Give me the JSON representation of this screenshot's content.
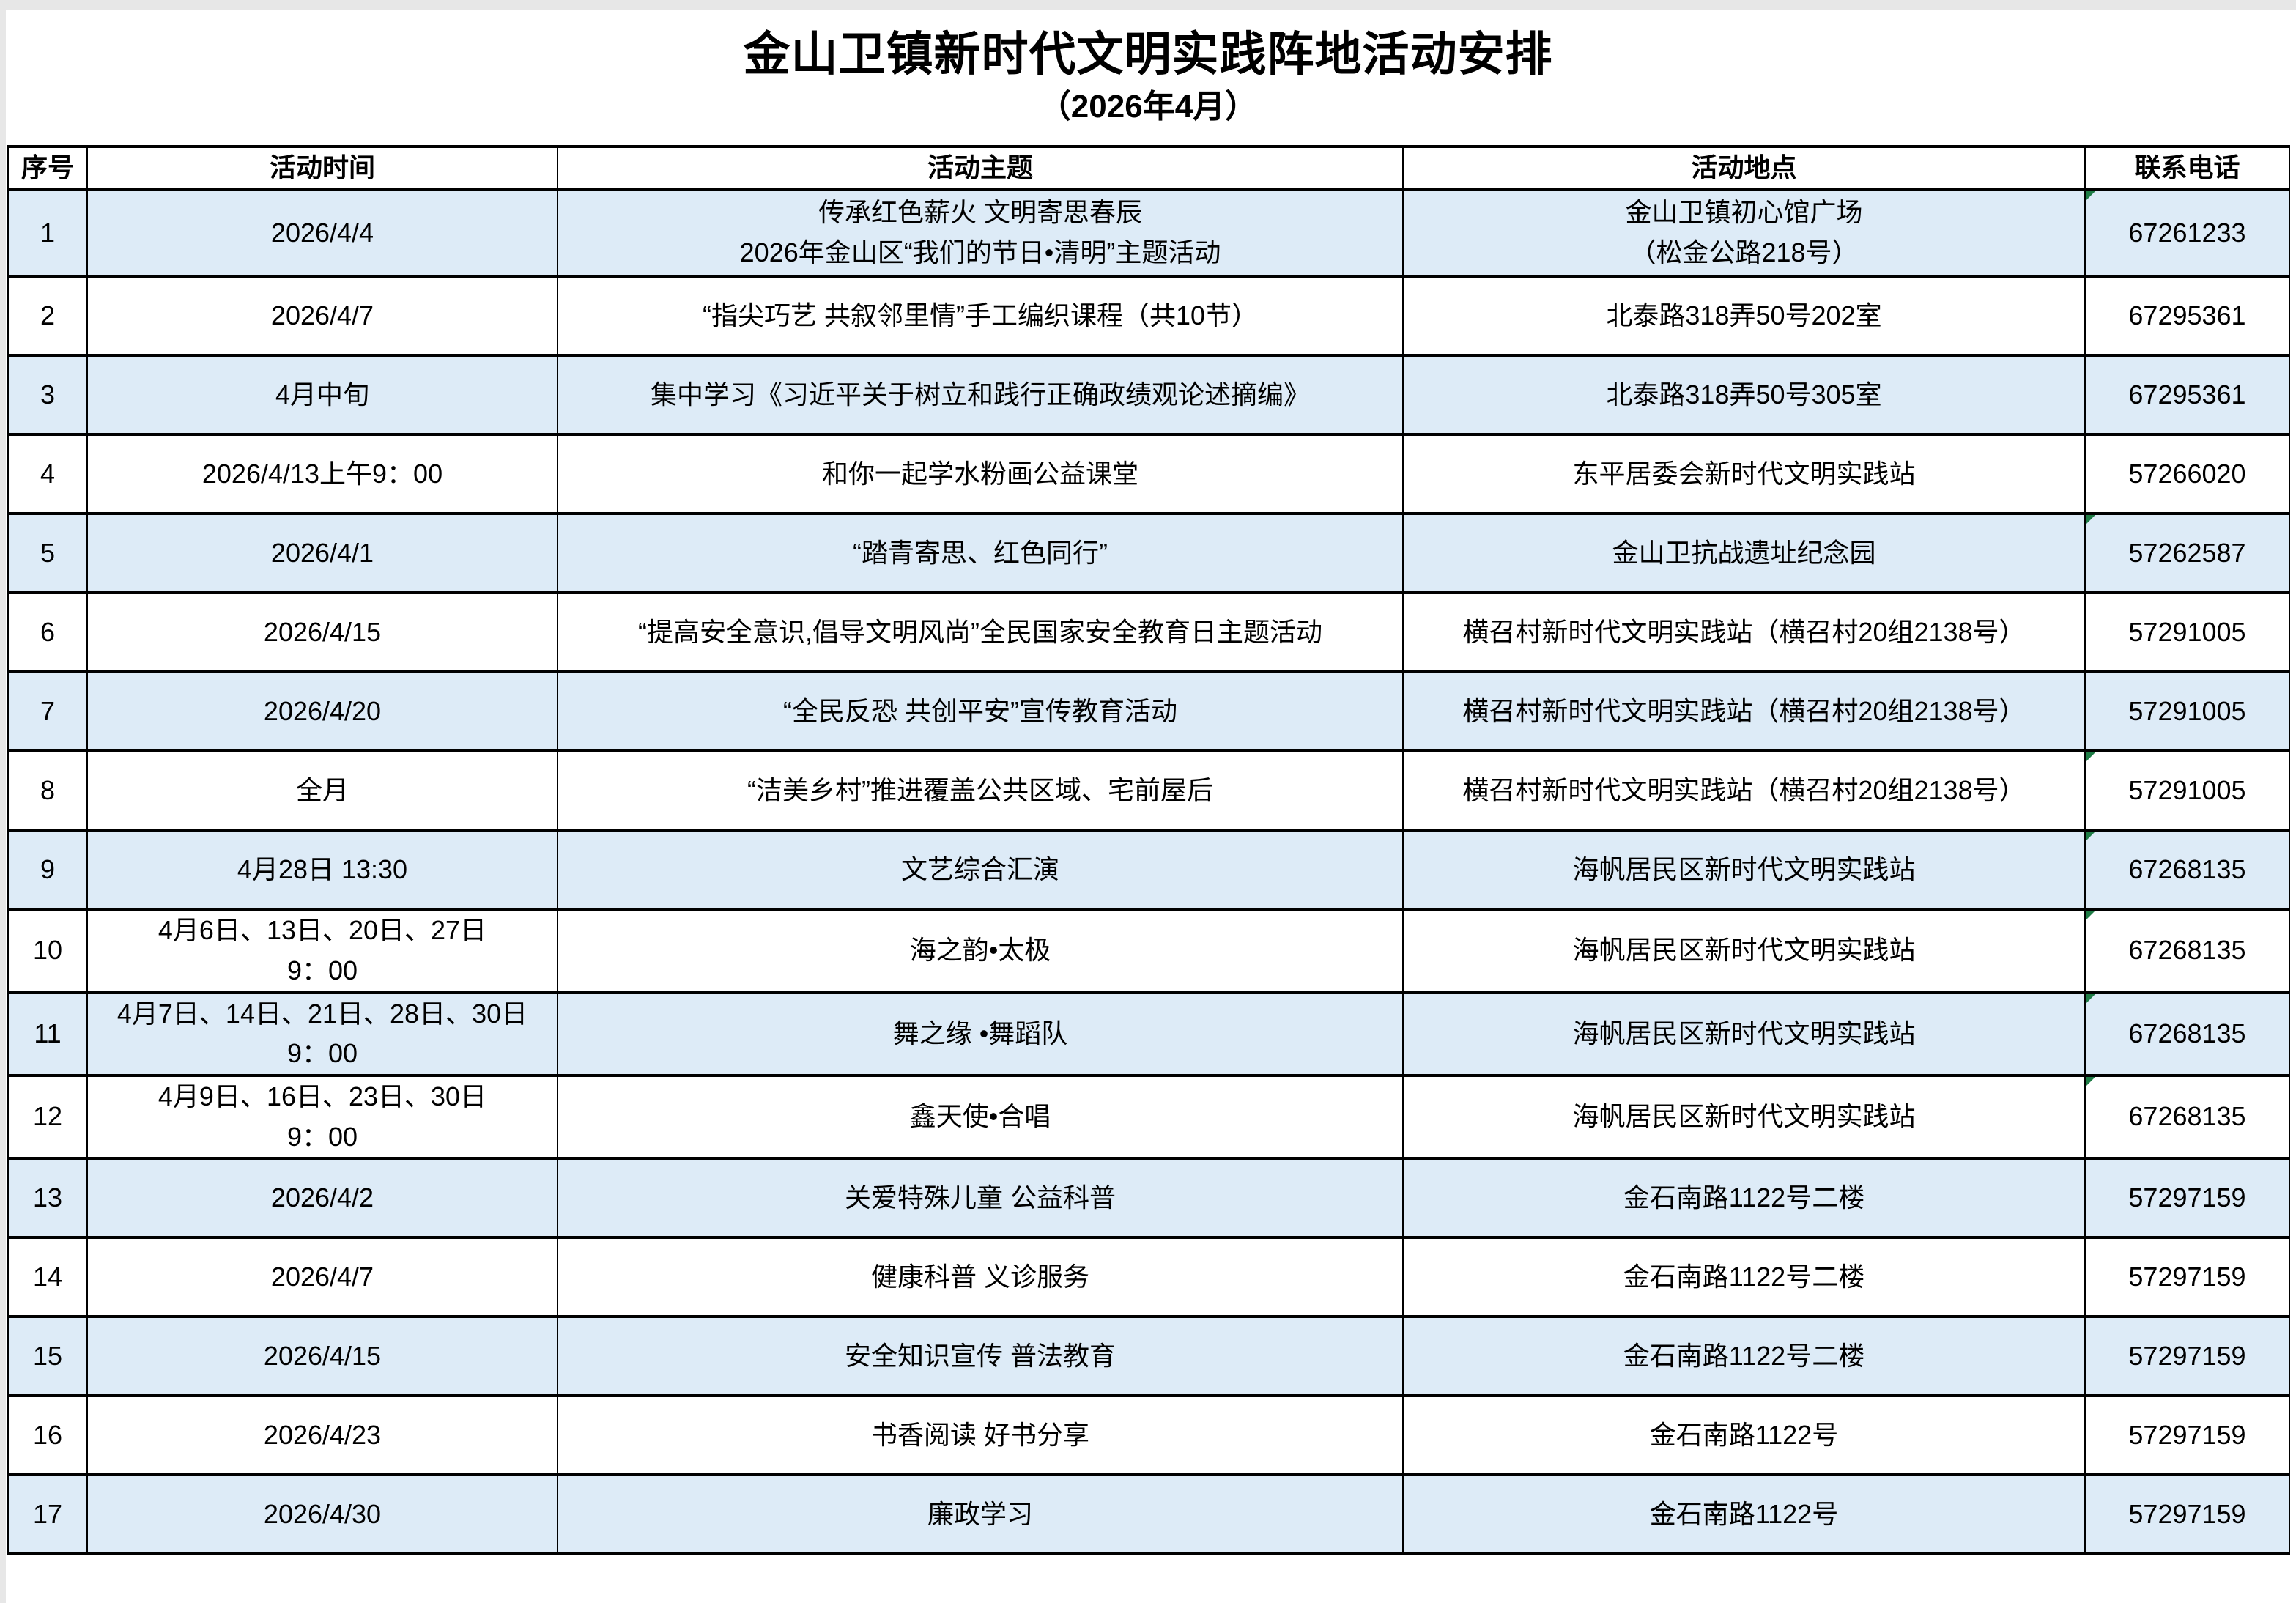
{
  "title": "金山卫镇新时代文明实践阵地活动安排",
  "subtitle": "（2026年4月）",
  "colors": {
    "row_alt_blue": "#DDEBF7",
    "flag_green": "#1E7C45",
    "border_black": "#000000",
    "window_edge_gray": "#E7E7E7"
  },
  "table": {
    "columns": [
      "序号",
      "活动时间",
      "活动主题",
      "活动地点",
      "联系电话"
    ],
    "rows": [
      {
        "no": "1",
        "time": "2026/4/4",
        "theme": "传承红色薪火 文明寄思春辰\n2026年金山区“我们的节日•清明”主题活动",
        "location": "金山卫镇初心馆广场\n（松金公路218号）",
        "phone": "67261233",
        "marker": true
      },
      {
        "no": "2",
        "time": "2026/4/7",
        "theme": "“指尖巧艺 共叙邻里情”手工编织课程（共10节）",
        "location": "北泰路318弄50号202室",
        "phone": "67295361",
        "marker": false
      },
      {
        "no": "3",
        "time": "4月中旬",
        "theme": "集中学习《习近平关于树立和践行正确政绩观论述摘编》",
        "location": "北泰路318弄50号305室",
        "phone": "67295361",
        "marker": false
      },
      {
        "no": "4",
        "time": "2026/4/13上午9：00",
        "theme": "和你一起学水粉画公益课堂",
        "location": "东平居委会新时代文明实践站",
        "phone": "57266020",
        "marker": false
      },
      {
        "no": "5",
        "time": "2026/4/1",
        "theme": "“踏青寄思、红色同行”",
        "location": "金山卫抗战遗址纪念园",
        "phone": "57262587",
        "marker": true
      },
      {
        "no": "6",
        "time": "2026/4/15",
        "theme": "“提高安全意识,倡导文明风尚”全民国家安全教育日主题活动",
        "location": "横召村新时代文明实践站（横召村20组2138号）",
        "phone": "57291005",
        "marker": false
      },
      {
        "no": "7",
        "time": "2026/4/20",
        "theme": "“全民反恐 共创平安”宣传教育活动",
        "location": "横召村新时代文明实践站（横召村20组2138号）",
        "phone": "57291005",
        "marker": false
      },
      {
        "no": "8",
        "time": "全月",
        "theme": "“洁美乡村”推进覆盖公共区域、宅前屋后",
        "location": "横召村新时代文明实践站（横召村20组2138号）",
        "phone": "57291005",
        "marker": true
      },
      {
        "no": "9",
        "time": "4月28日 13:30",
        "theme": "文艺综合汇演",
        "location": "海帆居民区新时代文明实践站",
        "phone": "67268135",
        "marker": true
      },
      {
        "no": "10",
        "time": "4月6日、13日、20日、27日\n9：00",
        "theme": "海之韵•太极",
        "location": "海帆居民区新时代文明实践站",
        "phone": "67268135",
        "marker": true
      },
      {
        "no": "11",
        "time": "4月7日、14日、21日、28日、30日\n9：00",
        "theme": "舞之缘 •舞蹈队",
        "location": "海帆居民区新时代文明实践站",
        "phone": "67268135",
        "marker": true
      },
      {
        "no": "12",
        "time": "4月9日、16日、23日、30日\n9：00",
        "theme": "鑫天使•合唱",
        "location": "海帆居民区新时代文明实践站",
        "phone": "67268135",
        "marker": true
      },
      {
        "no": "13",
        "time": "2026/4/2",
        "theme": "关爱特殊儿童 公益科普",
        "location": "金石南路1122号二楼",
        "phone": "57297159",
        "marker": false
      },
      {
        "no": "14",
        "time": "2026/4/7",
        "theme": "健康科普 义诊服务",
        "location": "金石南路1122号二楼",
        "phone": "57297159",
        "marker": false
      },
      {
        "no": "15",
        "time": "2026/4/15",
        "theme": "安全知识宣传 普法教育",
        "location": "金石南路1122号二楼",
        "phone": "57297159",
        "marker": false
      },
      {
        "no": "16",
        "time": "2026/4/23",
        "theme": "书香阅读 好书分享",
        "location": "金石南路1122号",
        "phone": "57297159",
        "marker": false
      },
      {
        "no": "17",
        "time": "2026/4/30",
        "theme": "廉政学习",
        "location": "金石南路1122号",
        "phone": "57297159",
        "marker": false
      }
    ]
  }
}
